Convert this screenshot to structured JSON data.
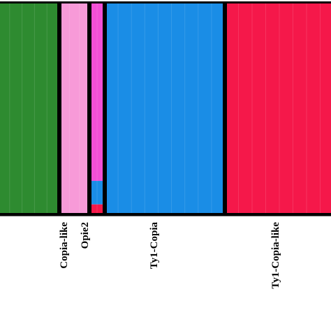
{
  "chart_data": {
    "type": "bar",
    "title": "",
    "xlabel": "",
    "ylabel": "",
    "ylim": [
      0,
      1
    ],
    "grid": false,
    "legend": "none",
    "groups": [
      {
        "label": "",
        "count": 1,
        "segments": [
          {
            "color": "#2e8b30",
            "value": 1.0
          }
        ]
      },
      {
        "label": "Copia-like",
        "count": 1,
        "segments": [
          {
            "color": "#f79ad8",
            "value": 1.0
          }
        ]
      },
      {
        "label": "Opie2",
        "count": 1,
        "segments": [
          {
            "color": "#f24fd6",
            "value": 0.84
          },
          {
            "color": "#1a8de6",
            "value": 0.11
          },
          {
            "color": "#f5184a",
            "value": 0.05
          }
        ]
      },
      {
        "label": "Ty1-Copia",
        "count": 1,
        "segments": [
          {
            "color": "#1a8de6",
            "value": 1.0
          }
        ]
      },
      {
        "label": "Ty1-Copia-like",
        "count": 1,
        "segments": [
          {
            "color": "#f5184a",
            "value": 1.0
          }
        ]
      }
    ]
  }
}
